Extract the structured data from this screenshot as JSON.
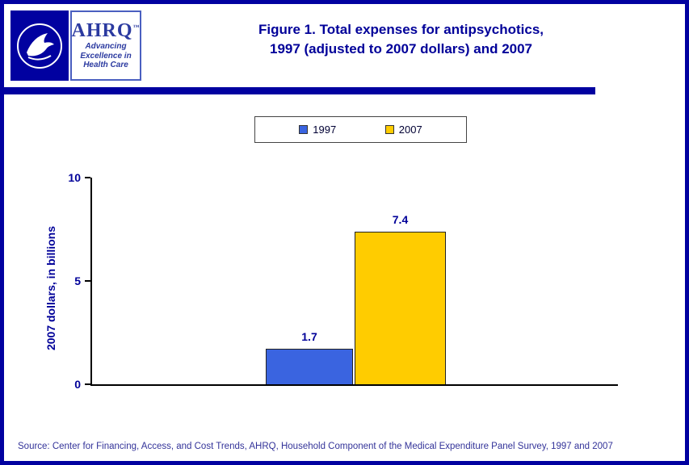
{
  "header": {
    "title_line1": "Figure 1. Total expenses for antipsychotics,",
    "title_line2": "1997 (adjusted to 2007 dollars) and 2007",
    "hhs_logo": "hhs-seal",
    "ahrq_logo": {
      "wordmark": "AHRQ",
      "trademark": "™",
      "tagline_line1": "Advancing",
      "tagline_line2": "Excellence in",
      "tagline_line3": "Health Care"
    }
  },
  "chart_data": {
    "type": "bar",
    "categories": [
      "1997",
      "2007"
    ],
    "values": [
      1.7,
      7.4
    ],
    "value_labels": [
      "1.7",
      "7.4"
    ],
    "series_colors": [
      "#3a64e0",
      "#ffcc00"
    ],
    "title": "Figure 1. Total expenses for antipsychotics, 1997 (adjusted to 2007 dollars) and 2007",
    "xlabel": "",
    "ylabel": "2007 dollars, in billions",
    "ylim": [
      0,
      10
    ],
    "yticks": [
      0,
      5,
      10
    ],
    "grid": false,
    "legend": [
      "1997",
      "2007"
    ],
    "legend_position": "top"
  },
  "footer": {
    "source": "Source: Center for Financing, Access, and Cost Trends, AHRQ, Household Component of the Medical Expenditure Panel Survey, 1997 and 2007"
  }
}
